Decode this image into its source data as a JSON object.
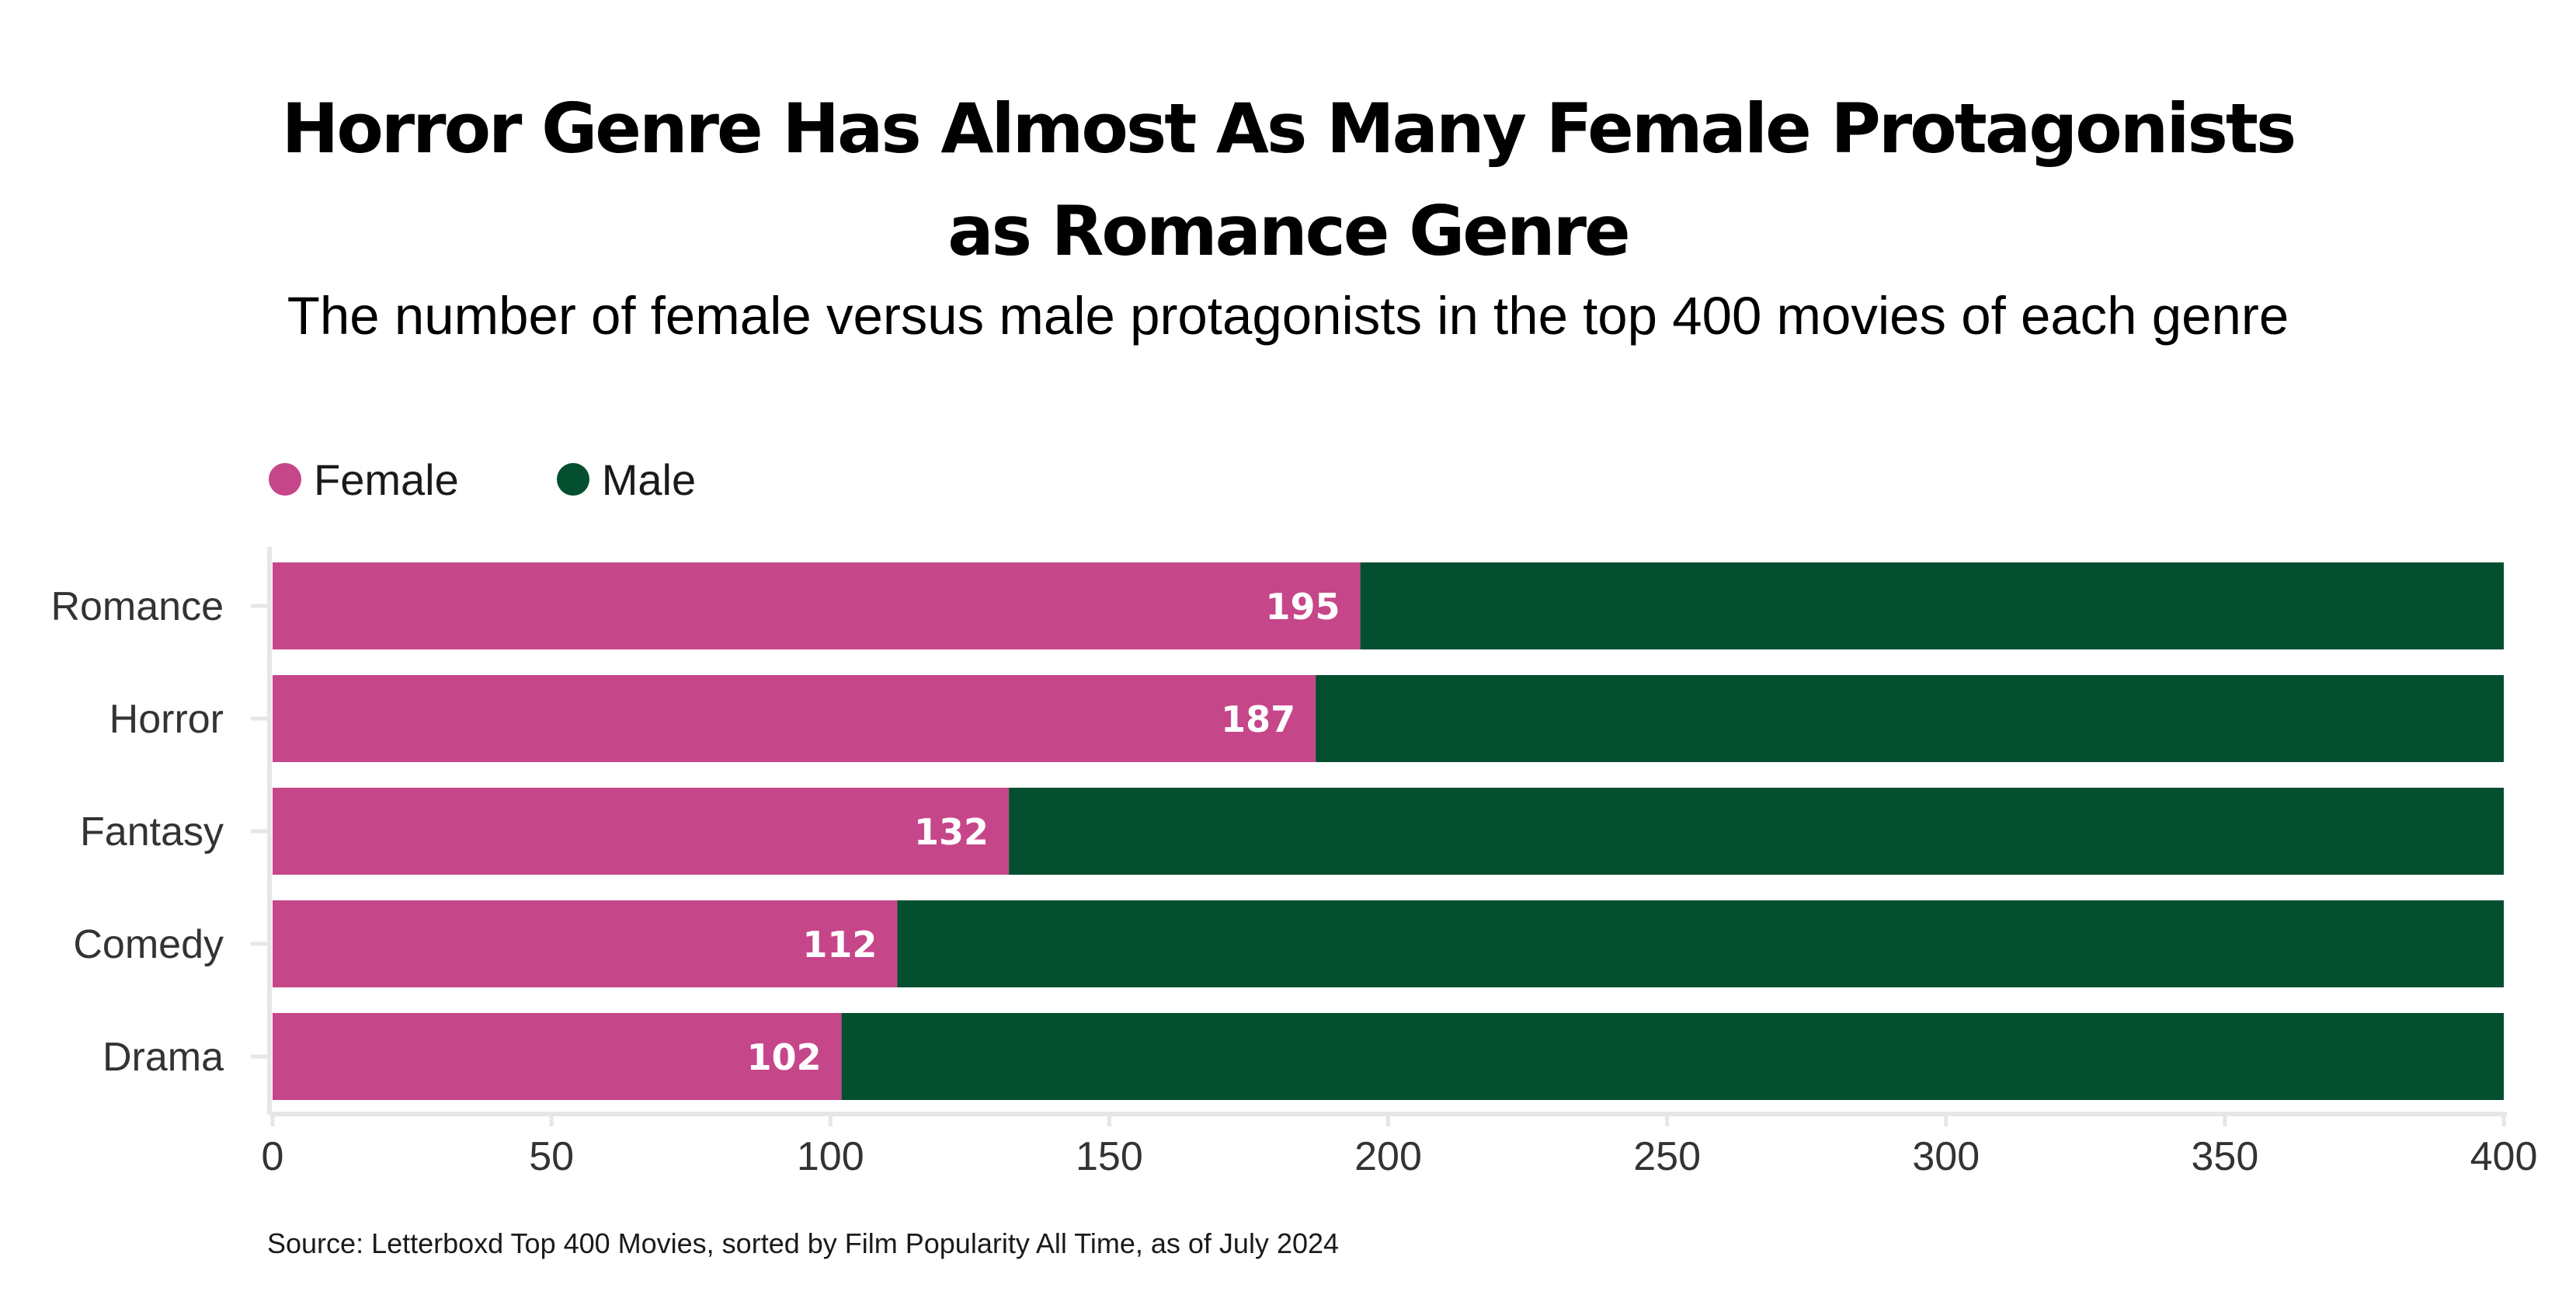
{
  "title_line1": "Horror Genre Has Almost As Many Female Protagonists",
  "title_line2": "as Romance Genre",
  "subtitle": "The number of female versus male protagonists in the top 400 movies of each genre",
  "source": "Source: Letterboxd Top 400 Movies, sorted by Film Popularity All Time, as of July 2024",
  "colors": {
    "female": "#c6468a",
    "male": "#034f30",
    "axis": "#e6e6e6",
    "tick_text": "#333333",
    "data_label": "#ffffff"
  },
  "chart_data": {
    "type": "bar",
    "orientation": "horizontal",
    "stacked": true,
    "categories": [
      "Romance",
      "Horror",
      "Fantasy",
      "Comedy",
      "Drama"
    ],
    "series": [
      {
        "name": "Female",
        "values": [
          195,
          187,
          132,
          112,
          102
        ]
      },
      {
        "name": "Male",
        "values": [
          205,
          213,
          268,
          288,
          298
        ]
      }
    ],
    "data_labels": [
      "195",
      "187",
      "132",
      "112",
      "102"
    ],
    "xlim": [
      0,
      400
    ],
    "xticks": [
      0,
      50,
      100,
      150,
      200,
      250,
      300,
      350,
      400
    ],
    "grid": false,
    "legend": "top-left"
  }
}
